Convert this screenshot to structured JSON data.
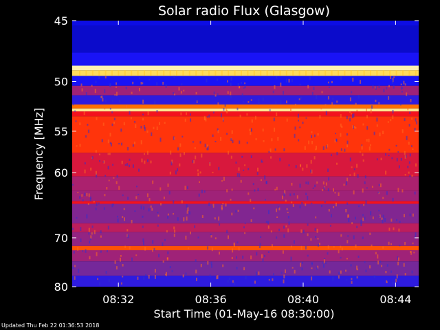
{
  "chart_data": {
    "type": "heatmap",
    "title": "Solar radio Flux (Glasgow)",
    "xlabel": "Start Time (01-May-16 08:30:00)",
    "ylabel": "Frequency [MHz]",
    "x_tick_labels": [
      "08:32",
      "08:36",
      "08:40",
      "08:44"
    ],
    "x_ticks_minutes_after_0830": [
      2,
      6,
      10,
      14
    ],
    "xlim_minutes_after_0830": [
      0,
      15.0
    ],
    "y_tick_labels": [
      "45",
      "50",
      "55",
      "60",
      "70",
      "80"
    ],
    "y_ticks_mhz": [
      45,
      50,
      55,
      60,
      70,
      80
    ],
    "ylim_mhz": [
      45,
      80
    ],
    "y_scale": "reciprocal",
    "colormap": [
      "#000050",
      "#1010ff",
      "#5a2bb0",
      "#b0206a",
      "#ff1010",
      "#ff7a00",
      "#ffe060",
      "#ffffff"
    ],
    "frequency_bands": [
      {
        "mhz_from": 45.0,
        "mhz_to": 45.4,
        "level": 0.12
      },
      {
        "mhz_from": 45.4,
        "mhz_to": 47.5,
        "level": 0.1
      },
      {
        "mhz_from": 47.5,
        "mhz_to": 48.6,
        "level": 0.16
      },
      {
        "mhz_from": 48.6,
        "mhz_to": 49.0,
        "level": 0.93
      },
      {
        "mhz_from": 49.0,
        "mhz_to": 49.5,
        "level": 0.85
      },
      {
        "mhz_from": 49.5,
        "mhz_to": 50.4,
        "level": 0.16
      },
      {
        "mhz_from": 50.4,
        "mhz_to": 51.3,
        "level": 0.4
      },
      {
        "mhz_from": 51.3,
        "mhz_to": 52.2,
        "level": 0.2
      },
      {
        "mhz_from": 52.2,
        "mhz_to": 52.6,
        "level": 0.7
      },
      {
        "mhz_from": 52.6,
        "mhz_to": 52.9,
        "level": 0.9
      },
      {
        "mhz_from": 52.9,
        "mhz_to": 53.4,
        "level": 0.55
      },
      {
        "mhz_from": 53.4,
        "mhz_to": 57.5,
        "level": 0.62
      },
      {
        "mhz_from": 57.5,
        "mhz_to": 60.5,
        "level": 0.5
      },
      {
        "mhz_from": 60.5,
        "mhz_to": 62.5,
        "level": 0.42
      },
      {
        "mhz_from": 62.5,
        "mhz_to": 64.0,
        "level": 0.4
      },
      {
        "mhz_from": 64.0,
        "mhz_to": 64.4,
        "level": 0.55
      },
      {
        "mhz_from": 64.4,
        "mhz_to": 67.5,
        "level": 0.35
      },
      {
        "mhz_from": 67.5,
        "mhz_to": 69.0,
        "level": 0.45
      },
      {
        "mhz_from": 69.0,
        "mhz_to": 71.5,
        "level": 0.38
      },
      {
        "mhz_from": 71.5,
        "mhz_to": 72.3,
        "level": 0.66
      },
      {
        "mhz_from": 72.3,
        "mhz_to": 74.5,
        "level": 0.4
      },
      {
        "mhz_from": 74.5,
        "mhz_to": 77.5,
        "level": 0.33
      },
      {
        "mhz_from": 77.5,
        "mhz_to": 80.0,
        "level": 0.2
      }
    ],
    "grid": false
  },
  "footer": {
    "updated": "Updated Thu Feb 22 01:36:53 2018"
  }
}
